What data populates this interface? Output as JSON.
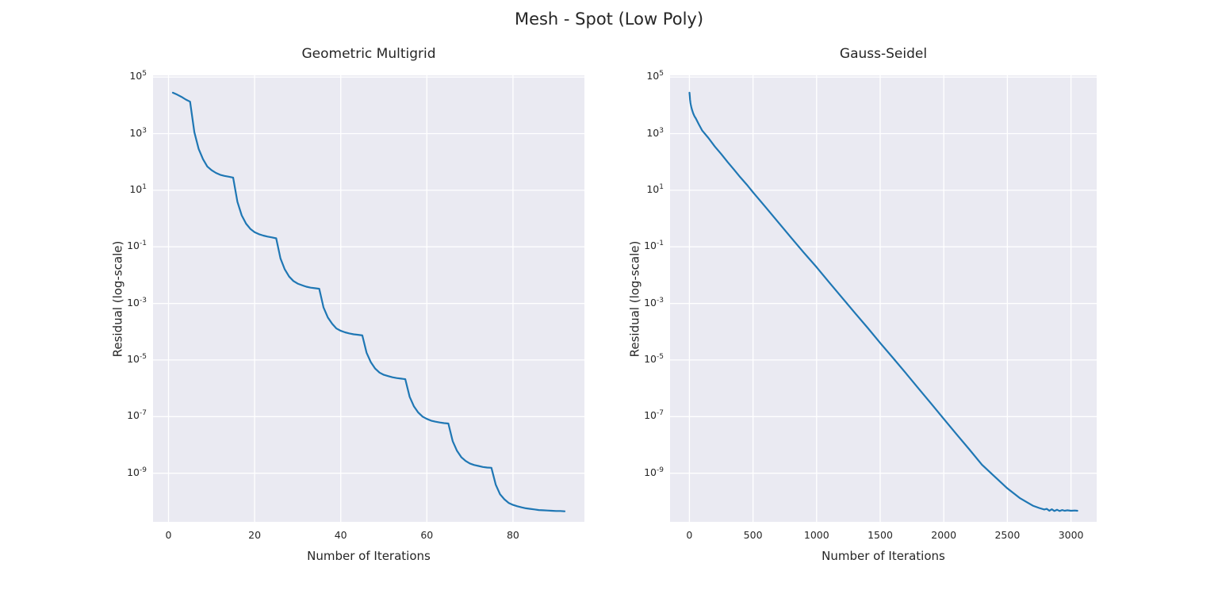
{
  "figure": {
    "suptitle": "Mesh - Spot (Low Poly)",
    "background_color": "#ffffff",
    "axes_background_color": "#eaeaf2",
    "grid_color": "#ffffff",
    "line_color": "#1f77b4",
    "text_color": "#262626"
  },
  "chart_data": [
    {
      "type": "line",
      "title": "Geometric Multigrid",
      "xlabel": "Number of Iterations",
      "ylabel": "Residual (log-scale)",
      "yscale": "log",
      "grid": true,
      "legend": "none",
      "x_ticks": [
        0,
        20,
        40,
        60,
        80
      ],
      "y_tick_exponents": [
        5,
        3,
        1,
        -1,
        -3,
        -5,
        -7,
        -9
      ],
      "xlim": [
        -3.6,
        96.6
      ],
      "ylim_exponents": [
        -10.72,
        5.06
      ],
      "x_start": 1,
      "x_step": 1,
      "y_values": [
        28000.0,
        24000.0,
        20000.0,
        16000.0,
        13500.0,
        1120.0,
        290.0,
        125.0,
        69.0,
        51.0,
        41.0,
        35.0,
        32.0,
        30.0,
        28.0,
        3.9,
        1.3,
        0.66,
        0.43,
        0.33,
        0.28,
        0.25,
        0.23,
        0.215,
        0.2,
        0.039,
        0.016,
        0.0089,
        0.0062,
        0.005,
        0.0044,
        0.0039,
        0.0036,
        0.00345,
        0.0033,
        0.00072,
        0.00032,
        0.00019,
        0.00013,
        0.000108,
        9.5e-05,
        8.7e-05,
        8.1e-05,
        7.8e-05,
        7.4e-05,
        1.8e-05,
        8.3e-06,
        5e-06,
        3.6e-06,
        3e-06,
        2.7e-06,
        2.45e-06,
        2.3e-06,
        2.2e-06,
        2.1e-06,
        5e-07,
        2.3e-07,
        1.4e-07,
        1e-07,
        8.3e-08,
        7.2e-08,
        6.6e-08,
        6.2e-08,
        5.9e-08,
        5.7e-08,
        1.35e-08,
        6.2e-09,
        3.7e-09,
        2.7e-09,
        2.2e-09,
        1.95e-09,
        1.8e-09,
        1.66e-09,
        1.58e-09,
        1.55e-09,
        3.9e-10,
        1.8e-10,
        1.2e-10,
        8.9e-11,
        7.6e-11,
        6.8e-11,
        6.2e-11,
        5.75e-11,
        5.5e-11,
        5.25e-11,
        5e-11,
        4.9e-11,
        4.8e-11,
        4.7e-11,
        4.6e-11,
        4.6e-11,
        4.5e-11
      ]
    },
    {
      "type": "line",
      "title": "Gauss-Seidel",
      "xlabel": "Number of Iterations",
      "ylabel": "Residual (log-scale)",
      "yscale": "log",
      "grid": true,
      "legend": "none",
      "x_ticks": [
        0,
        500,
        1000,
        1500,
        2000,
        2500,
        3000
      ],
      "y_tick_exponents": [
        5,
        3,
        1,
        -1,
        -3,
        -5,
        -7,
        -9
      ],
      "xlim": [
        -152,
        3202
      ],
      "ylim_exponents": [
        -10.72,
        5.06
      ],
      "points": [
        [
          1,
          28000.0
        ],
        [
          3,
          21000.0
        ],
        [
          5,
          16000.0
        ],
        [
          8,
          12500.0
        ],
        [
          10,
          11000.0
        ],
        [
          15,
          8700.0
        ],
        [
          20,
          7100.0
        ],
        [
          30,
          5200.0
        ],
        [
          40,
          4100.0
        ],
        [
          50,
          3500.0
        ],
        [
          75,
          2100.0
        ],
        [
          100,
          1300.0
        ],
        [
          150,
          700.0
        ],
        [
          200,
          350.0
        ],
        [
          250,
          190.0
        ],
        [
          300,
          100.0
        ],
        [
          350,
          54.0
        ],
        [
          400,
          29.0
        ],
        [
          450,
          16.0
        ],
        [
          500,
          8.5
        ],
        [
          600,
          2.5
        ],
        [
          700,
          0.72
        ],
        [
          800,
          0.21
        ],
        [
          900,
          0.062
        ],
        [
          1000,
          0.019
        ],
        [
          1100,
          0.0055
        ],
        [
          1200,
          0.0016
        ],
        [
          1300,
          0.00047
        ],
        [
          1400,
          0.00014
        ],
        [
          1500,
          4e-05
        ],
        [
          1600,
          1.2e-05
        ],
        [
          1700,
          3.5e-06
        ],
        [
          1800,
          1e-06
        ],
        [
          1900,
          2.9e-07
        ],
        [
          2000,
          8.3e-08
        ],
        [
          2100,
          2.4e-08
        ],
        [
          2200,
          7e-09
        ],
        [
          2300,
          2e-09
        ],
        [
          2400,
          7.6e-10
        ],
        [
          2500,
          2.9e-10
        ],
        [
          2600,
          1.3e-10
        ],
        [
          2700,
          7.1e-11
        ],
        [
          2750,
          5.9e-11
        ],
        [
          2790,
          5.2e-11
        ],
        [
          2810,
          5.5e-11
        ],
        [
          2830,
          4.7e-11
        ],
        [
          2850,
          5.3e-11
        ],
        [
          2870,
          4.6e-11
        ],
        [
          2890,
          5.1e-11
        ],
        [
          2910,
          4.6e-11
        ],
        [
          2930,
          5e-11
        ],
        [
          2950,
          4.7e-11
        ],
        [
          2970,
          4.9e-11
        ],
        [
          3000,
          4.7e-11
        ],
        [
          3030,
          4.8e-11
        ],
        [
          3050,
          4.7e-11
        ]
      ]
    }
  ]
}
